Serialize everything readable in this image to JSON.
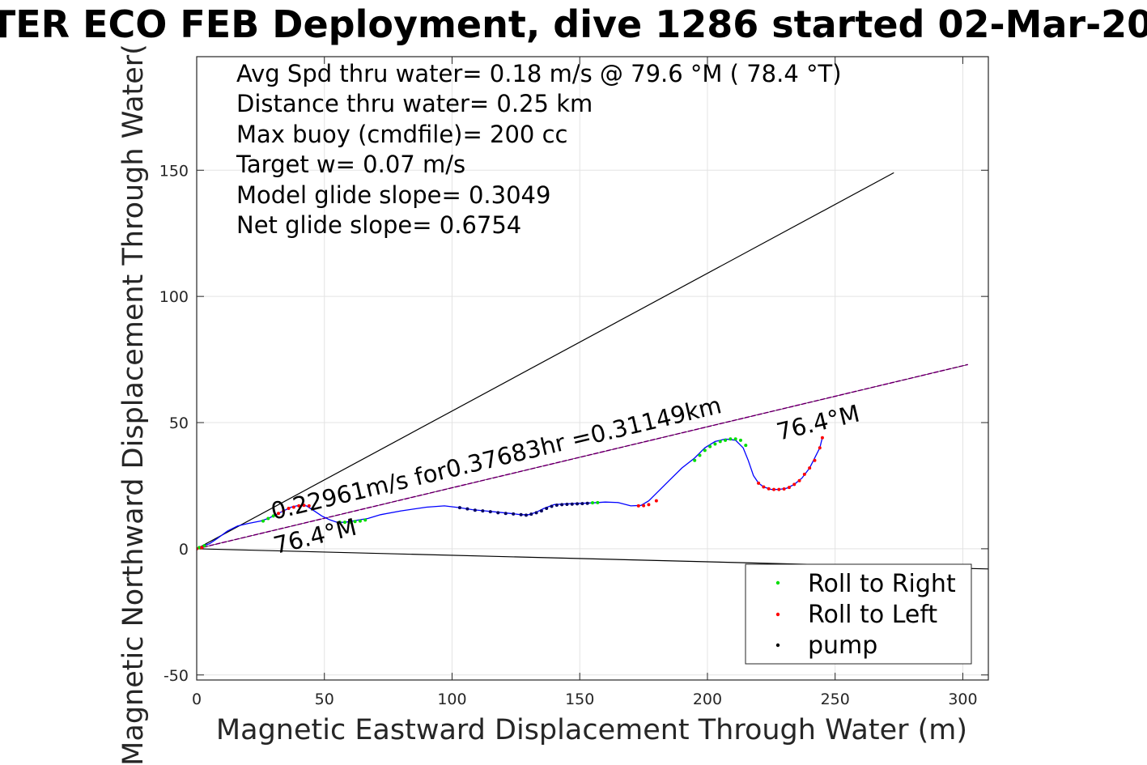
{
  "colors": {
    "track": "#0000ff",
    "roll_right": "#00dd00",
    "roll_left": "#ff0000",
    "pump": "#000060",
    "heading_line": "#cc00cc",
    "bounds_line": "#000000",
    "grid": "#e3e3e3",
    "axis": "#262626"
  },
  "chart_data": {
    "type": "line",
    "title": "TER ECO FEB Deployment, dive 1286 started 02-Mar-20",
    "xlabel": "Magnetic Eastward Displacement Through Water (m)",
    "ylabel": "Magnetic Northward Displacement Through Water(",
    "xlim": [
      0,
      310
    ],
    "ylim": [
      -52,
      195
    ],
    "xticks": [
      0,
      50,
      100,
      150,
      200,
      250,
      300
    ],
    "yticks": [
      -50,
      0,
      50,
      100,
      150
    ],
    "xtick_labels": [
      "0",
      "50",
      "100",
      "150",
      "200",
      "250",
      "300"
    ],
    "ytick_labels": [
      "-50",
      "0",
      "50",
      "100",
      "150"
    ],
    "grid": true,
    "legend_position": "bottom-right",
    "info_text": [
      "Avg Spd thru water=  0.18 m/s @  79.6 °M ( 78.4 °T)",
      "Distance thru water=  0.25 km",
      "Max buoy (cmdfile)= 200 cc",
      "Target w= 0.07 m/s",
      "Model glide slope= 0.3049",
      "Net glide slope= 0.6754"
    ],
    "annotations": [
      {
        "text": "0.22961m/s for0.37683hr =0.31149km",
        "x": 30,
        "y": 11.5
      },
      {
        "text": "76.4°M",
        "x": 31,
        "y": -2
      },
      {
        "text": "76.4°M",
        "x": 228,
        "y": 43
      }
    ],
    "lines": [
      {
        "role": "bounds",
        "x": [
          0,
          273
        ],
        "y": [
          0,
          149
        ]
      },
      {
        "role": "bounds",
        "x": [
          0,
          310
        ],
        "y": [
          0,
          -8
        ]
      },
      {
        "role": "heading",
        "x": [
          0,
          302
        ],
        "y": [
          0,
          73
        ]
      }
    ],
    "track": {
      "x": [
        0,
        2,
        5,
        8,
        12,
        16,
        20,
        25,
        28,
        31,
        34,
        37,
        40,
        43,
        46,
        49,
        52,
        55,
        58,
        61,
        64,
        67,
        72,
        80,
        90,
        97,
        103,
        108,
        113,
        118,
        123,
        127,
        130,
        133,
        136,
        140,
        145,
        150,
        155,
        160,
        165,
        170,
        174,
        177,
        180,
        185,
        190,
        195,
        199,
        203,
        207,
        211,
        214,
        216,
        218,
        220,
        222,
        225,
        228,
        231,
        234,
        237,
        240,
        242,
        244,
        245
      ],
      "y": [
        0,
        1,
        2,
        4,
        7,
        9,
        10,
        11,
        12,
        13.5,
        15,
        16.5,
        17.2,
        17,
        15,
        13,
        11.5,
        10.5,
        10.5,
        11,
        11.5,
        12,
        13.5,
        15,
        16.5,
        17,
        16.3,
        15.5,
        15,
        14.5,
        14,
        13.5,
        13.5,
        14.5,
        16,
        17.5,
        17.8,
        18,
        18.2,
        18.5,
        18.3,
        17,
        17.2,
        19,
        22,
        27,
        32,
        36,
        40,
        42.5,
        43.5,
        43,
        40,
        35,
        29,
        26,
        24.5,
        23.5,
        23.5,
        24,
        25.5,
        28,
        32,
        36,
        40,
        44
      ]
    },
    "series": [
      {
        "name": "Roll to Right",
        "x": [
          1,
          3,
          26,
          28,
          30,
          56,
          58,
          60,
          62,
          64,
          66,
          155,
          157,
          195,
          197,
          199,
          201,
          203,
          205,
          207,
          209,
          211,
          213,
          215
        ],
        "y": [
          0.5,
          1.2,
          11,
          12,
          13,
          10.5,
          10.5,
          10.6,
          10.8,
          11,
          11.4,
          18.2,
          18.3,
          35,
          37,
          39,
          40.5,
          41.5,
          42.5,
          43,
          43.5,
          43.5,
          43,
          41
        ]
      },
      {
        "name": "Roll to Left",
        "x": [
          0,
          2,
          32,
          34,
          36,
          38,
          40,
          42,
          44,
          173,
          175,
          177,
          180,
          220,
          222,
          224,
          226,
          228,
          230,
          232,
          234,
          236,
          238,
          240,
          242,
          244,
          245
        ],
        "y": [
          0,
          0.5,
          14,
          15,
          16,
          16.5,
          17,
          17.2,
          17,
          17,
          17.1,
          17.5,
          19,
          26,
          24.5,
          23.8,
          23.5,
          23.5,
          23.7,
          24.3,
          25.5,
          27,
          29.5,
          32,
          35,
          40,
          44
        ]
      },
      {
        "name": "pump",
        "x": [
          103,
          106,
          109,
          112,
          115,
          118,
          121,
          124,
          127,
          129,
          131,
          133,
          135,
          137,
          139,
          141,
          143,
          145,
          147,
          149,
          151,
          153
        ],
        "y": [
          16.3,
          15.8,
          15.3,
          15,
          14.7,
          14.3,
          14,
          13.8,
          13.5,
          13.3,
          13.7,
          14.3,
          15,
          16,
          16.8,
          17.3,
          17.5,
          17.6,
          17.7,
          17.8,
          17.9,
          18
        ]
      }
    ]
  }
}
